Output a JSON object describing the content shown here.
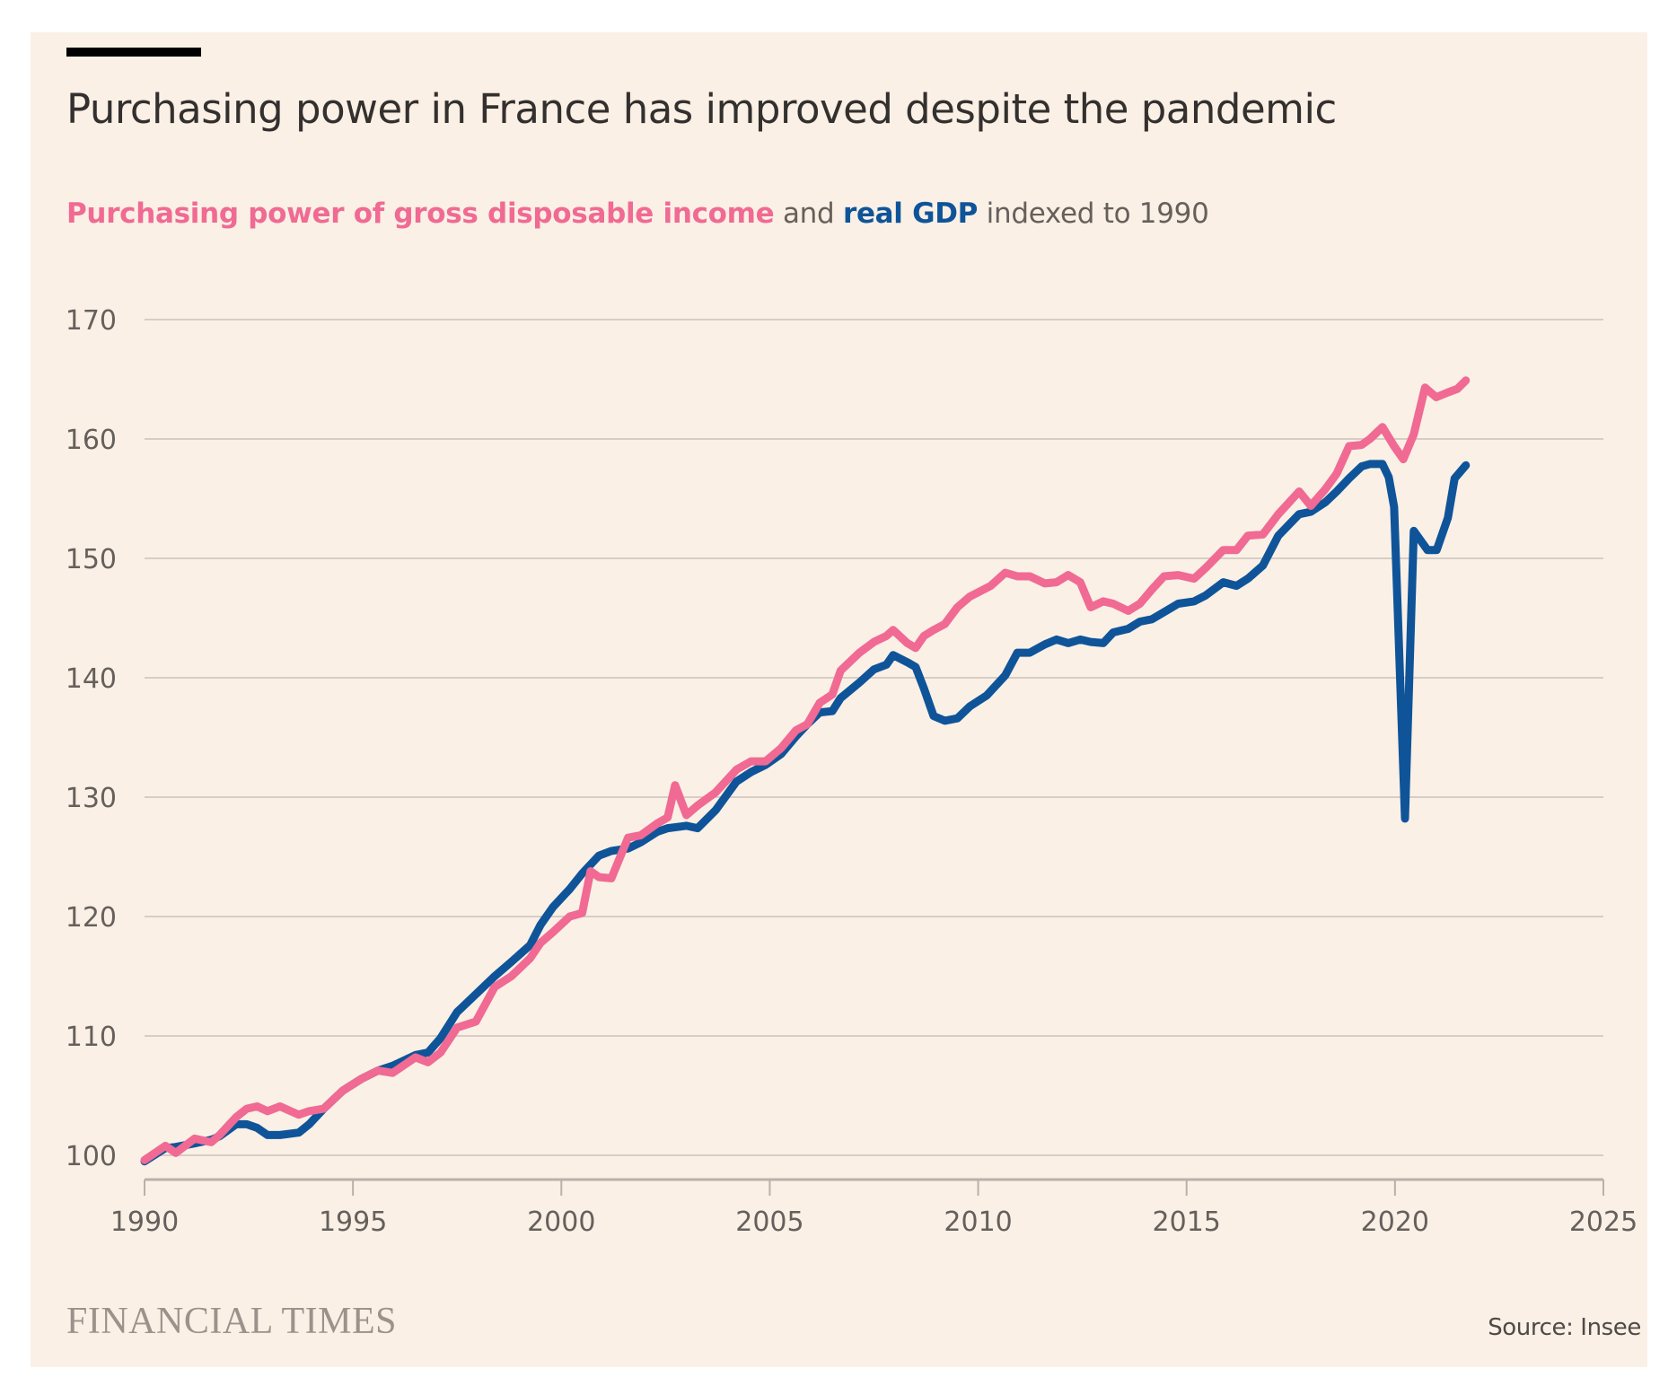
{
  "header": {
    "title": "Purchasing power in France has improved despite the pandemic",
    "subtitle_parts": {
      "series1": "Purchasing power of gross disposable income",
      "joiner": " and ",
      "series2": "real GDP",
      "suffix": " indexed to 1990"
    }
  },
  "footer": {
    "logo": "FINANCIAL TIMES",
    "source": "Source: Insee"
  },
  "colors": {
    "background": "#faf0e6",
    "purchasing_power": "#f06a93",
    "gdp": "#0f5499",
    "gridline": "#d6cec6",
    "axis": "#b9b1aa"
  },
  "chart_data": {
    "type": "line",
    "title": "Purchasing power in France has improved despite the pandemic",
    "subtitle": "Purchasing power of gross disposable income and real GDP indexed to 1990",
    "xlabel": "",
    "ylabel": "",
    "xlim": [
      1990,
      2025
    ],
    "ylim": [
      100,
      170
    ],
    "x_ticks": [
      "1990",
      "1995",
      "2000",
      "2005",
      "2010",
      "2015",
      "2020",
      "2025"
    ],
    "y_ticks": [
      "100",
      "110",
      "120",
      "130",
      "140",
      "150",
      "160",
      "170"
    ],
    "grid": true,
    "legend": "inline in subtitle",
    "source": "Insee",
    "series": [
      {
        "name": "Purchasing power of gross disposable income",
        "color": "#f06a93",
        "points": [
          [
            1990.0,
            99.6
          ],
          [
            1990.5,
            100.8
          ],
          [
            1990.75,
            100.2
          ],
          [
            1991.2,
            101.4
          ],
          [
            1991.6,
            101.1
          ],
          [
            1991.8,
            101.7
          ],
          [
            1992.2,
            103.2
          ],
          [
            1992.45,
            103.9
          ],
          [
            1992.7,
            104.1
          ],
          [
            1992.95,
            103.7
          ],
          [
            1993.25,
            104.1
          ],
          [
            1993.7,
            103.4
          ],
          [
            1993.95,
            103.7
          ],
          [
            1994.3,
            103.9
          ],
          [
            1994.75,
            105.4
          ],
          [
            1995.2,
            106.4
          ],
          [
            1995.6,
            107.1
          ],
          [
            1995.95,
            106.9
          ],
          [
            1996.5,
            108.2
          ],
          [
            1996.8,
            107.8
          ],
          [
            1997.1,
            108.6
          ],
          [
            1997.5,
            110.7
          ],
          [
            1997.95,
            111.2
          ],
          [
            1998.4,
            114.1
          ],
          [
            1998.8,
            115.0
          ],
          [
            1999.25,
            116.5
          ],
          [
            1999.5,
            117.8
          ],
          [
            1999.8,
            118.7
          ],
          [
            2000.2,
            120.0
          ],
          [
            2000.5,
            120.3
          ],
          [
            2000.7,
            123.8
          ],
          [
            2000.9,
            123.3
          ],
          [
            2001.2,
            123.2
          ],
          [
            2001.6,
            126.6
          ],
          [
            2001.9,
            126.8
          ],
          [
            2002.3,
            127.8
          ],
          [
            2002.55,
            128.3
          ],
          [
            2002.73,
            131.0
          ],
          [
            2003.0,
            128.5
          ],
          [
            2003.27,
            129.3
          ],
          [
            2003.7,
            130.4
          ],
          [
            2004.2,
            132.3
          ],
          [
            2004.55,
            133.0
          ],
          [
            2004.9,
            133.0
          ],
          [
            2005.27,
            134.1
          ],
          [
            2005.63,
            135.6
          ],
          [
            2005.9,
            136.1
          ],
          [
            2006.2,
            137.9
          ],
          [
            2006.5,
            138.6
          ],
          [
            2006.7,
            140.6
          ],
          [
            2007.15,
            142.1
          ],
          [
            2007.5,
            143.0
          ],
          [
            2007.8,
            143.5
          ],
          [
            2007.96,
            144.0
          ],
          [
            2008.3,
            142.9
          ],
          [
            2008.5,
            142.5
          ],
          [
            2008.7,
            143.5
          ],
          [
            2008.93,
            144.0
          ],
          [
            2009.2,
            144.5
          ],
          [
            2009.5,
            145.9
          ],
          [
            2009.8,
            146.8
          ],
          [
            2010.3,
            147.7
          ],
          [
            2010.65,
            148.8
          ],
          [
            2010.94,
            148.5
          ],
          [
            2011.24,
            148.5
          ],
          [
            2011.6,
            147.9
          ],
          [
            2011.88,
            148.0
          ],
          [
            2012.16,
            148.6
          ],
          [
            2012.45,
            148.0
          ],
          [
            2012.7,
            145.9
          ],
          [
            2013.0,
            146.4
          ],
          [
            2013.24,
            146.2
          ],
          [
            2013.6,
            145.6
          ],
          [
            2013.88,
            146.2
          ],
          [
            2014.17,
            147.4
          ],
          [
            2014.46,
            148.5
          ],
          [
            2014.8,
            148.6
          ],
          [
            2015.18,
            148.3
          ],
          [
            2015.46,
            149.2
          ],
          [
            2015.88,
            150.7
          ],
          [
            2016.2,
            150.7
          ],
          [
            2016.47,
            151.9
          ],
          [
            2016.83,
            152.0
          ],
          [
            2017.2,
            153.7
          ],
          [
            2017.7,
            155.6
          ],
          [
            2017.98,
            154.4
          ],
          [
            2018.33,
            155.8
          ],
          [
            2018.6,
            157.1
          ],
          [
            2018.9,
            159.4
          ],
          [
            2019.2,
            159.5
          ],
          [
            2019.4,
            160.0
          ],
          [
            2019.7,
            161.0
          ],
          [
            2019.98,
            159.4
          ],
          [
            2020.2,
            158.3
          ],
          [
            2020.45,
            160.4
          ],
          [
            2020.72,
            164.3
          ],
          [
            2020.99,
            163.5
          ],
          [
            2021.27,
            163.9
          ],
          [
            2021.5,
            164.2
          ],
          [
            2021.7,
            164.9
          ]
        ]
      },
      {
        "name": "Real GDP",
        "color": "#0f5499",
        "points": [
          [
            1990.0,
            99.5
          ],
          [
            1990.5,
            100.6
          ],
          [
            1990.75,
            100.7
          ],
          [
            1991.2,
            101.0
          ],
          [
            1991.6,
            101.3
          ],
          [
            1991.8,
            101.6
          ],
          [
            1992.2,
            102.6
          ],
          [
            1992.45,
            102.6
          ],
          [
            1992.7,
            102.3
          ],
          [
            1992.95,
            101.7
          ],
          [
            1993.25,
            101.7
          ],
          [
            1993.7,
            101.9
          ],
          [
            1993.95,
            102.6
          ],
          [
            1994.3,
            103.9
          ],
          [
            1994.75,
            105.4
          ],
          [
            1995.2,
            106.4
          ],
          [
            1995.6,
            107.1
          ],
          [
            1995.95,
            107.5
          ],
          [
            1996.5,
            108.4
          ],
          [
            1996.8,
            108.6
          ],
          [
            1997.1,
            109.8
          ],
          [
            1997.5,
            112.0
          ],
          [
            1997.95,
            113.5
          ],
          [
            1998.4,
            115.0
          ],
          [
            1998.8,
            116.2
          ],
          [
            1999.25,
            117.6
          ],
          [
            1999.5,
            119.3
          ],
          [
            1999.8,
            120.8
          ],
          [
            2000.2,
            122.3
          ],
          [
            2000.5,
            123.6
          ],
          [
            2000.9,
            125.1
          ],
          [
            2001.2,
            125.5
          ],
          [
            2001.6,
            125.7
          ],
          [
            2001.9,
            126.2
          ],
          [
            2002.3,
            127.1
          ],
          [
            2002.55,
            127.4
          ],
          [
            2003.0,
            127.6
          ],
          [
            2003.27,
            127.4
          ],
          [
            2003.7,
            128.9
          ],
          [
            2004.2,
            131.3
          ],
          [
            2004.55,
            132.1
          ],
          [
            2004.9,
            132.7
          ],
          [
            2005.27,
            133.6
          ],
          [
            2005.63,
            135.1
          ],
          [
            2005.9,
            136.1
          ],
          [
            2006.2,
            137.1
          ],
          [
            2006.5,
            137.2
          ],
          [
            2006.7,
            138.3
          ],
          [
            2007.15,
            139.6
          ],
          [
            2007.5,
            140.7
          ],
          [
            2007.8,
            141.1
          ],
          [
            2007.96,
            141.9
          ],
          [
            2008.3,
            141.3
          ],
          [
            2008.5,
            140.9
          ],
          [
            2008.7,
            139.1
          ],
          [
            2008.93,
            136.8
          ],
          [
            2009.2,
            136.4
          ],
          [
            2009.5,
            136.6
          ],
          [
            2009.8,
            137.6
          ],
          [
            2010.2,
            138.5
          ],
          [
            2010.65,
            140.2
          ],
          [
            2010.94,
            142.1
          ],
          [
            2011.24,
            142.1
          ],
          [
            2011.6,
            142.8
          ],
          [
            2011.88,
            143.2
          ],
          [
            2012.16,
            142.9
          ],
          [
            2012.45,
            143.2
          ],
          [
            2012.7,
            143.0
          ],
          [
            2013.0,
            142.9
          ],
          [
            2013.24,
            143.8
          ],
          [
            2013.6,
            144.1
          ],
          [
            2013.88,
            144.7
          ],
          [
            2014.17,
            144.9
          ],
          [
            2014.46,
            145.5
          ],
          [
            2014.8,
            146.2
          ],
          [
            2015.18,
            146.4
          ],
          [
            2015.46,
            146.9
          ],
          [
            2015.88,
            148.0
          ],
          [
            2016.2,
            147.7
          ],
          [
            2016.47,
            148.3
          ],
          [
            2016.83,
            149.4
          ],
          [
            2017.2,
            151.9
          ],
          [
            2017.7,
            153.7
          ],
          [
            2017.98,
            153.9
          ],
          [
            2018.33,
            154.7
          ],
          [
            2018.6,
            155.6
          ],
          [
            2018.9,
            156.7
          ],
          [
            2019.2,
            157.7
          ],
          [
            2019.4,
            157.9
          ],
          [
            2019.7,
            157.9
          ],
          [
            2019.85,
            156.8
          ],
          [
            2019.98,
            154.3
          ],
          [
            2020.24,
            128.2
          ],
          [
            2020.45,
            152.3
          ],
          [
            2020.78,
            150.7
          ],
          [
            2021.0,
            150.7
          ],
          [
            2021.27,
            153.4
          ],
          [
            2021.43,
            156.7
          ],
          [
            2021.7,
            157.8
          ]
        ]
      }
    ]
  }
}
